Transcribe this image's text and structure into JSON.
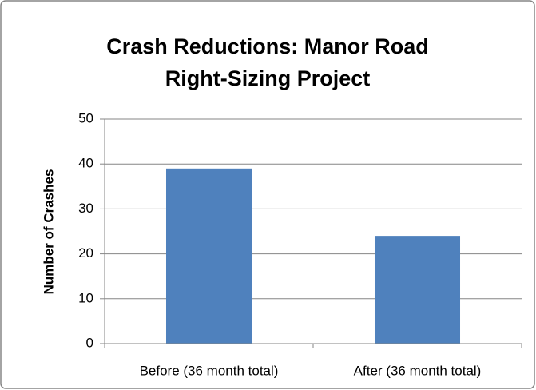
{
  "chart_data": {
    "type": "bar",
    "title": "Crash Reductions: Manor Road Right-Sizing Project",
    "y_label": "Number of Crashes",
    "categories": [
      "Before (36 month total)",
      "After (36 month total)"
    ],
    "values": [
      39,
      24
    ],
    "color": "#4f81bd",
    "ylim": [
      0,
      50
    ],
    "yticks": [
      0,
      10,
      20,
      30,
      40,
      50
    ],
    "grid": true
  }
}
